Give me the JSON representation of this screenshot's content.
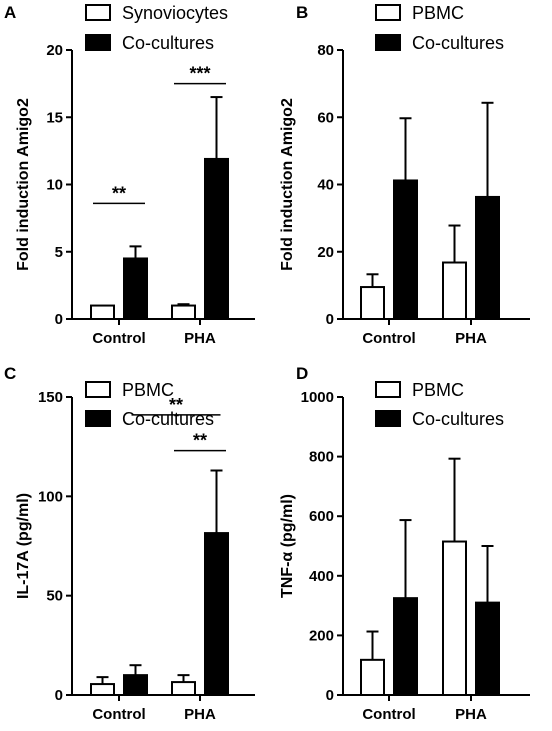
{
  "figure": {
    "panels": [
      {
        "letter": "A",
        "legend": [
          "Synoviocytes",
          "Co-cultures"
        ]
      },
      {
        "letter": "B",
        "legend": [
          "PBMC",
          "Co-cultures"
        ]
      },
      {
        "letter": "C",
        "legend": [
          "PBMC",
          "Co-cultures"
        ]
      },
      {
        "letter": "D",
        "legend": [
          "PBMC",
          "Co-cultures"
        ]
      }
    ]
  },
  "colors": {
    "open_fill": "#ffffff",
    "solid_fill": "#000000",
    "stroke": "#000000"
  },
  "chart_data": [
    {
      "type": "bar",
      "panel": "A",
      "title": "",
      "xlabel": "",
      "ylabel": "Fold induction Amigo2",
      "categories": [
        "Control",
        "PHA"
      ],
      "ylim": [
        0,
        20
      ],
      "yticks": [
        0,
        5,
        10,
        15,
        20
      ],
      "series": [
        {
          "name": "Synoviocytes",
          "style": "open",
          "values": [
            1.0,
            1.0
          ],
          "errors": [
            0.0,
            0.1
          ]
        },
        {
          "name": "Co-cultures",
          "style": "solid",
          "values": [
            4.5,
            11.9
          ],
          "errors": [
            0.9,
            4.6
          ]
        }
      ],
      "significance": [
        {
          "category": "Control",
          "label": "**",
          "y": 8.6
        },
        {
          "category": "PHA",
          "label": "***",
          "y": 17.5
        }
      ],
      "legend": "top-left"
    },
    {
      "type": "bar",
      "panel": "B",
      "title": "",
      "xlabel": "",
      "ylabel": "Fold induction Amigo2",
      "categories": [
        "Control",
        "PHA"
      ],
      "ylim": [
        0,
        80
      ],
      "yticks": [
        0,
        20,
        40,
        60,
        80
      ],
      "series": [
        {
          "name": "PBMC",
          "style": "open",
          "values": [
            9.5,
            16.8
          ],
          "errors": [
            3.8,
            11.0
          ]
        },
        {
          "name": "Co-cultures",
          "style": "solid",
          "values": [
            41.2,
            36.3
          ],
          "errors": [
            18.5,
            28.0
          ]
        }
      ],
      "significance": [],
      "legend": "top-left"
    },
    {
      "type": "bar",
      "panel": "C",
      "title": "",
      "xlabel": "",
      "ylabel": "IL-17A (pg/ml)",
      "categories": [
        "Control",
        "PHA"
      ],
      "ylim": [
        0,
        150
      ],
      "yticks": [
        0,
        50,
        100,
        150
      ],
      "series": [
        {
          "name": "PBMC",
          "style": "open",
          "values": [
            5.5,
            6.5
          ],
          "errors": [
            3.5,
            3.5
          ]
        },
        {
          "name": "Co-cultures",
          "style": "solid",
          "values": [
            10.0,
            81.5
          ],
          "errors": [
            5.0,
            31.5
          ]
        }
      ],
      "significance": [
        {
          "category": "PHA",
          "label": "**",
          "y": 123
        },
        {
          "span": [
            "Control",
            "PHA"
          ],
          "label": "**",
          "y": 141
        }
      ],
      "legend": "top-left"
    },
    {
      "type": "bar",
      "panel": "D",
      "title": "",
      "xlabel": "",
      "ylabel": "TNF-α (pg/ml)",
      "categories": [
        "Control",
        "PHA"
      ],
      "ylim": [
        0,
        1000
      ],
      "yticks": [
        0,
        200,
        400,
        600,
        800,
        1000
      ],
      "series": [
        {
          "name": "PBMC",
          "style": "open",
          "values": [
            118,
            515
          ],
          "errors": [
            95,
            278
          ]
        },
        {
          "name": "Co-cultures",
          "style": "solid",
          "values": [
            325,
            310
          ],
          "errors": [
            262,
            190
          ]
        }
      ],
      "significance": [],
      "legend": "top-left"
    }
  ]
}
